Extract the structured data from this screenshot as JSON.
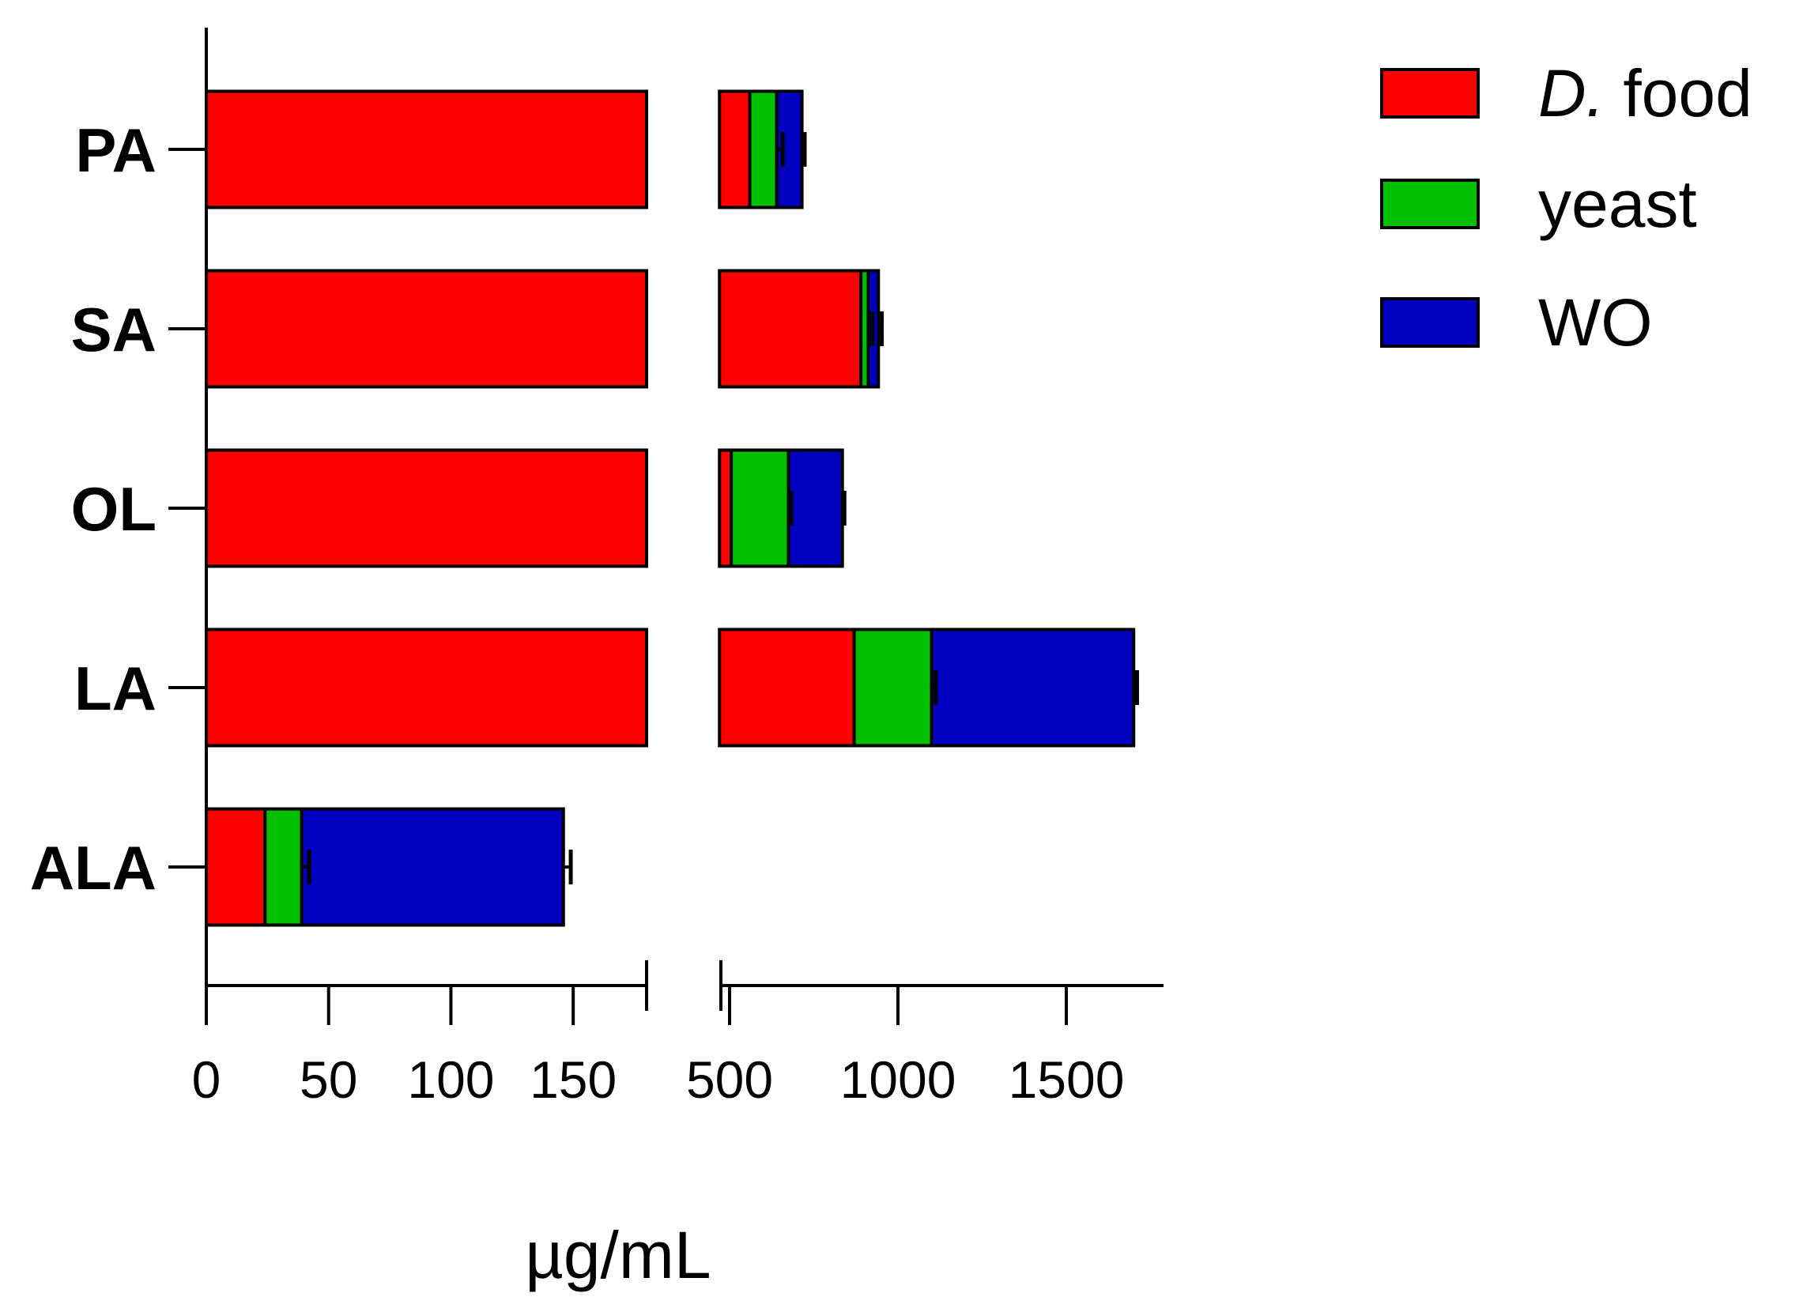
{
  "chart_data": {
    "type": "bar",
    "orientation": "horizontal",
    "stacked": true,
    "categories": [
      "PA",
      "SA",
      "OL",
      "LA",
      "ALA"
    ],
    "series": [
      {
        "name": "D. food",
        "color": "#ff0000",
        "values": [
          560,
          890,
          505,
          870,
          24
        ],
        "errors": [
          0,
          0,
          0,
          0,
          0
        ]
      },
      {
        "name": "yeast",
        "color": "#00c000",
        "values": [
          80,
          22,
          170,
          230,
          15
        ],
        "errors": [
          18,
          12,
          8,
          12,
          3
        ]
      },
      {
        "name": "WO",
        "color": "#0000c0",
        "values": [
          75,
          30,
          160,
          600,
          107
        ],
        "errors": [
          8,
          10,
          6,
          10,
          3
        ]
      }
    ],
    "xlabel": "µg/mL",
    "x_axis_break": {
      "segment1": [
        0,
        180
      ],
      "segment2": [
        470,
        1800
      ]
    },
    "xticks_segment1": [
      "0",
      "50",
      "100",
      "150"
    ],
    "xticks_segment2": [
      "500",
      "1000",
      "1500"
    ],
    "legend": {
      "placement": "top-right",
      "items": [
        {
          "prefix": "D.",
          "suffix": " food",
          "color": "#ff0000"
        },
        {
          "prefix": "",
          "suffix": "yeast",
          "color": "#00c000"
        },
        {
          "prefix": "",
          "suffix": "WO",
          "color": "#0000c0"
        }
      ]
    },
    "grid": false
  }
}
